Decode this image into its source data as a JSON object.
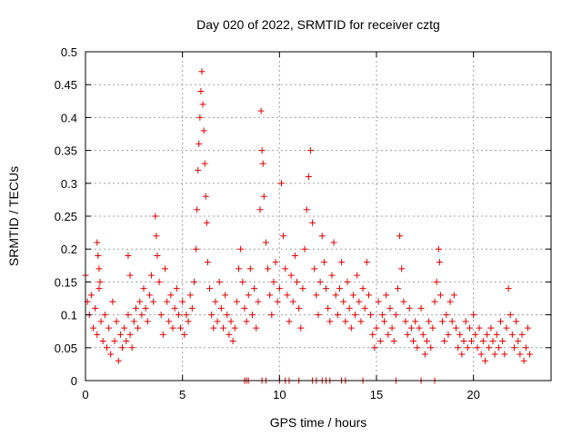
{
  "chart_data": {
    "type": "scatter",
    "title": "Day 020 of 2022, SRMTID for receiver cztg",
    "xlabel": "GPS time / hours",
    "ylabel": "SRMTID / TECUs",
    "xlim": [
      0,
      24
    ],
    "ylim": [
      0,
      0.5
    ],
    "xticks": [
      0,
      5,
      10,
      15,
      20
    ],
    "yticks": [
      0,
      0.05,
      0.1,
      0.15,
      0.2,
      0.25,
      0.3,
      0.35,
      0.4,
      0.45,
      0.5
    ],
    "xtick_labels": [
      "0",
      "5",
      "10",
      "15",
      "20"
    ],
    "ytick_labels": [
      "0",
      "0.05",
      "0.1",
      "0.15",
      "0.2",
      "0.25",
      "0.3",
      "0.35",
      "0.4",
      "0.45",
      "0.5"
    ],
    "grid": true,
    "marker": "plus",
    "series": [
      {
        "name": "SRMTID",
        "color": "#e00000",
        "points": [
          [
            0.0,
            0.16
          ],
          [
            0.1,
            0.12
          ],
          [
            0.2,
            0.1
          ],
          [
            0.3,
            0.13
          ],
          [
            0.4,
            0.08
          ],
          [
            0.5,
            0.11
          ],
          [
            0.6,
            0.07
          ],
          [
            0.7,
            0.14
          ],
          [
            0.8,
            0.09
          ],
          [
            0.9,
            0.06
          ],
          [
            1.0,
            0.1
          ],
          [
            1.1,
            0.05
          ],
          [
            1.2,
            0.08
          ],
          [
            1.3,
            0.04
          ],
          [
            1.4,
            0.12
          ],
          [
            1.5,
            0.06
          ],
          [
            1.6,
            0.09
          ],
          [
            1.7,
            0.03
          ],
          [
            1.8,
            0.07
          ],
          [
            1.9,
            0.05
          ],
          [
            0.6,
            0.21
          ],
          [
            0.65,
            0.19
          ],
          [
            0.7,
            0.17
          ],
          [
            0.75,
            0.15
          ],
          [
            2.2,
            0.19
          ],
          [
            2.3,
            0.16
          ],
          [
            2.0,
            0.08
          ],
          [
            2.1,
            0.06
          ],
          [
            2.2,
            0.1
          ],
          [
            2.3,
            0.07
          ],
          [
            2.4,
            0.05
          ],
          [
            2.5,
            0.09
          ],
          [
            2.6,
            0.11
          ],
          [
            2.7,
            0.08
          ],
          [
            2.8,
            0.12
          ],
          [
            2.9,
            0.1
          ],
          [
            3.0,
            0.14
          ],
          [
            3.1,
            0.11
          ],
          [
            3.2,
            0.09
          ],
          [
            3.3,
            0.13
          ],
          [
            3.4,
            0.16
          ],
          [
            3.5,
            0.12
          ],
          [
            3.6,
            0.25
          ],
          [
            3.65,
            0.22
          ],
          [
            3.7,
            0.19
          ],
          [
            3.8,
            0.15
          ],
          [
            3.9,
            0.1
          ],
          [
            4.0,
            0.07
          ],
          [
            4.1,
            0.17
          ],
          [
            4.2,
            0.12
          ],
          [
            4.3,
            0.09
          ],
          [
            4.4,
            0.13
          ],
          [
            4.5,
            0.08
          ],
          [
            4.6,
            0.11
          ],
          [
            4.7,
            0.14
          ],
          [
            4.8,
            0.1
          ],
          [
            4.9,
            0.08
          ],
          [
            5.0,
            0.12
          ],
          [
            5.1,
            0.07
          ],
          [
            5.2,
            0.1
          ],
          [
            5.3,
            0.09
          ],
          [
            5.4,
            0.13
          ],
          [
            5.5,
            0.11
          ],
          [
            5.6,
            0.15
          ],
          [
            5.7,
            0.2
          ],
          [
            5.75,
            0.26
          ],
          [
            5.8,
            0.32
          ],
          [
            5.85,
            0.36
          ],
          [
            5.9,
            0.4
          ],
          [
            5.95,
            0.44
          ],
          [
            6.0,
            0.47
          ],
          [
            6.05,
            0.42
          ],
          [
            6.1,
            0.38
          ],
          [
            6.15,
            0.33
          ],
          [
            6.2,
            0.28
          ],
          [
            6.25,
            0.24
          ],
          [
            6.3,
            0.18
          ],
          [
            6.4,
            0.14
          ],
          [
            6.5,
            0.1
          ],
          [
            6.6,
            0.08
          ],
          [
            6.7,
            0.12
          ],
          [
            6.8,
            0.09
          ],
          [
            6.9,
            0.15
          ],
          [
            7.0,
            0.11
          ],
          [
            7.1,
            0.08
          ],
          [
            7.2,
            0.13
          ],
          [
            7.3,
            0.1
          ],
          [
            7.4,
            0.07
          ],
          [
            7.5,
            0.09
          ],
          [
            7.6,
            0.06
          ],
          [
            7.7,
            0.08
          ],
          [
            7.8,
            0.12
          ],
          [
            7.9,
            0.17
          ],
          [
            8.0,
            0.2
          ],
          [
            8.1,
            0.15
          ],
          [
            8.2,
            0.11
          ],
          [
            8.3,
            0.09
          ],
          [
            8.4,
            0.13
          ],
          [
            8.5,
            0.17
          ],
          [
            8.6,
            0.1
          ],
          [
            8.7,
            0.14
          ],
          [
            8.8,
            0.08
          ],
          [
            8.9,
            0.12
          ],
          [
            9.0,
            0.26
          ],
          [
            9.05,
            0.41
          ],
          [
            9.1,
            0.35
          ],
          [
            9.15,
            0.33
          ],
          [
            9.2,
            0.28
          ],
          [
            9.3,
            0.21
          ],
          [
            9.4,
            0.17
          ],
          [
            9.5,
            0.13
          ],
          [
            9.6,
            0.1
          ],
          [
            9.7,
            0.15
          ],
          [
            9.8,
            0.18
          ],
          [
            9.9,
            0.12
          ],
          [
            10.0,
            0.14
          ],
          [
            10.1,
            0.3
          ],
          [
            10.2,
            0.22
          ],
          [
            10.3,
            0.17
          ],
          [
            10.4,
            0.13
          ],
          [
            10.5,
            0.09
          ],
          [
            10.6,
            0.16
          ],
          [
            10.7,
            0.12
          ],
          [
            10.8,
            0.19
          ],
          [
            10.9,
            0.15
          ],
          [
            11.0,
            0.11
          ],
          [
            11.1,
            0.08
          ],
          [
            11.2,
            0.14
          ],
          [
            11.3,
            0.2
          ],
          [
            11.4,
            0.26
          ],
          [
            11.5,
            0.31
          ],
          [
            11.6,
            0.35
          ],
          [
            11.7,
            0.24
          ],
          [
            11.8,
            0.17
          ],
          [
            11.9,
            0.13
          ],
          [
            12.0,
            0.1
          ],
          [
            12.1,
            0.15
          ],
          [
            12.2,
            0.22
          ],
          [
            12.3,
            0.18
          ],
          [
            12.4,
            0.14
          ],
          [
            12.5,
            0.11
          ],
          [
            12.6,
            0.09
          ],
          [
            12.7,
            0.16
          ],
          [
            12.8,
            0.21
          ],
          [
            12.9,
            0.13
          ],
          [
            13.0,
            0.1
          ],
          [
            13.1,
            0.14
          ],
          [
            13.2,
            0.18
          ],
          [
            13.3,
            0.12
          ],
          [
            13.4,
            0.09
          ],
          [
            13.5,
            0.15
          ],
          [
            13.6,
            0.11
          ],
          [
            13.7,
            0.08
          ],
          [
            13.8,
            0.13
          ],
          [
            13.9,
            0.1
          ],
          [
            14.0,
            0.16
          ],
          [
            14.1,
            0.12
          ],
          [
            14.2,
            0.09
          ],
          [
            14.3,
            0.14
          ],
          [
            14.4,
            0.11
          ],
          [
            14.5,
            0.18
          ],
          [
            14.6,
            0.13
          ],
          [
            14.7,
            0.1
          ],
          [
            14.8,
            0.07
          ],
          [
            14.9,
            0.05
          ],
          [
            15.0,
            0.08
          ],
          [
            15.1,
            0.12
          ],
          [
            15.2,
            0.06
          ],
          [
            15.3,
            0.1
          ],
          [
            15.4,
            0.09
          ],
          [
            15.5,
            0.13
          ],
          [
            15.6,
            0.07
          ],
          [
            15.7,
            0.11
          ],
          [
            15.8,
            0.08
          ],
          [
            15.9,
            0.06
          ],
          [
            16.0,
            0.1
          ],
          [
            16.1,
            0.14
          ],
          [
            16.2,
            0.22
          ],
          [
            16.3,
            0.17
          ],
          [
            16.4,
            0.12
          ],
          [
            16.5,
            0.09
          ],
          [
            16.6,
            0.07
          ],
          [
            16.7,
            0.11
          ],
          [
            16.8,
            0.08
          ],
          [
            16.9,
            0.06
          ],
          [
            17.0,
            0.09
          ],
          [
            17.1,
            0.05
          ],
          [
            17.2,
            0.08
          ],
          [
            17.3,
            0.11
          ],
          [
            17.4,
            0.07
          ],
          [
            17.5,
            0.04
          ],
          [
            17.6,
            0.06
          ],
          [
            17.7,
            0.09
          ],
          [
            17.8,
            0.05
          ],
          [
            17.9,
            0.08
          ],
          [
            18.0,
            0.12
          ],
          [
            18.1,
            0.15
          ],
          [
            18.2,
            0.2
          ],
          [
            18.25,
            0.18
          ],
          [
            18.3,
            0.13
          ],
          [
            18.4,
            0.09
          ],
          [
            18.5,
            0.06
          ],
          [
            18.6,
            0.1
          ],
          [
            18.7,
            0.07
          ],
          [
            18.8,
            0.12
          ],
          [
            18.9,
            0.09
          ],
          [
            19.0,
            0.13
          ],
          [
            19.1,
            0.08
          ],
          [
            19.2,
            0.05
          ],
          [
            19.3,
            0.07
          ],
          [
            19.4,
            0.04
          ],
          [
            19.5,
            0.06
          ],
          [
            19.6,
            0.09
          ],
          [
            19.7,
            0.05
          ],
          [
            19.8,
            0.08
          ],
          [
            19.9,
            0.06
          ],
          [
            20.0,
            0.1
          ],
          [
            20.1,
            0.07
          ],
          [
            20.2,
            0.05
          ],
          [
            20.3,
            0.08
          ],
          [
            20.4,
            0.04
          ],
          [
            20.5,
            0.06
          ],
          [
            20.6,
            0.03
          ],
          [
            20.7,
            0.07
          ],
          [
            20.8,
            0.05
          ],
          [
            20.9,
            0.08
          ],
          [
            21.0,
            0.06
          ],
          [
            21.1,
            0.04
          ],
          [
            21.2,
            0.07
          ],
          [
            21.3,
            0.05
          ],
          [
            21.4,
            0.09
          ],
          [
            21.5,
            0.06
          ],
          [
            21.6,
            0.04
          ],
          [
            21.7,
            0.08
          ],
          [
            21.8,
            0.14
          ],
          [
            21.9,
            0.1
          ],
          [
            22.0,
            0.07
          ],
          [
            22.1,
            0.05
          ],
          [
            22.2,
            0.09
          ],
          [
            22.3,
            0.06
          ],
          [
            22.4,
            0.04
          ],
          [
            22.5,
            0.07
          ],
          [
            22.6,
            0.03
          ],
          [
            22.7,
            0.05
          ],
          [
            22.8,
            0.08
          ],
          [
            22.9,
            0.04
          ],
          [
            8.2,
            0.0
          ],
          [
            8.3,
            0.0
          ],
          [
            8.4,
            0.0
          ],
          [
            9.1,
            0.0
          ],
          [
            9.3,
            0.0
          ],
          [
            10.0,
            0.0
          ],
          [
            10.3,
            0.0
          ],
          [
            10.5,
            0.0
          ],
          [
            11.0,
            0.0
          ],
          [
            11.7,
            0.0
          ],
          [
            11.9,
            0.0
          ],
          [
            12.2,
            0.0
          ],
          [
            12.4,
            0.0
          ],
          [
            12.6,
            0.0
          ],
          [
            13.2,
            0.0
          ],
          [
            13.4,
            0.0
          ],
          [
            14.3,
            0.0
          ],
          [
            16.0,
            0.0
          ],
          [
            17.3,
            0.0
          ],
          [
            18.0,
            0.0
          ]
        ]
      }
    ]
  }
}
